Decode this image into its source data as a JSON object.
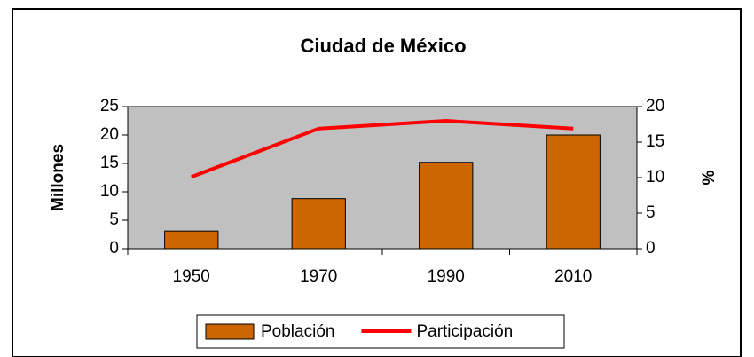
{
  "chart_data": {
    "type": "bar_line",
    "title": "Ciudad de México",
    "y_label": "Millones",
    "y2_label": "%",
    "categories": [
      "1950",
      "1970",
      "1990",
      "2010"
    ],
    "series": [
      {
        "name": "Población",
        "type": "bar",
        "color": "#cc6600",
        "values": [
          3.1,
          8.8,
          15.2,
          20.0
        ]
      },
      {
        "name": "Participación",
        "type": "line",
        "axis": "y2",
        "color": "#ff0000",
        "values": [
          10.1,
          16.9,
          18.0,
          16.9
        ]
      }
    ],
    "ylim": [
      0,
      25
    ],
    "yticks": [
      0,
      5,
      10,
      15,
      20,
      25
    ],
    "y2lim": [
      0,
      20
    ],
    "y2ticks": [
      0,
      5,
      10,
      15,
      20
    ],
    "plot_background": "#c0c0c0",
    "legend": "bottom"
  }
}
